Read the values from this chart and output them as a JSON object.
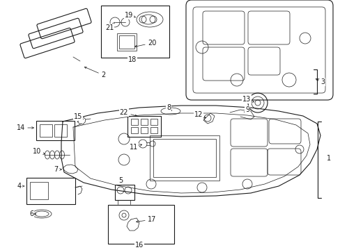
{
  "background_color": "#ffffff",
  "line_color": "#1a1a1a",
  "lw": 0.8,
  "tlw": 0.5,
  "fs": 7.0,
  "fig_w": 4.89,
  "fig_h": 3.6,
  "dpi": 100
}
